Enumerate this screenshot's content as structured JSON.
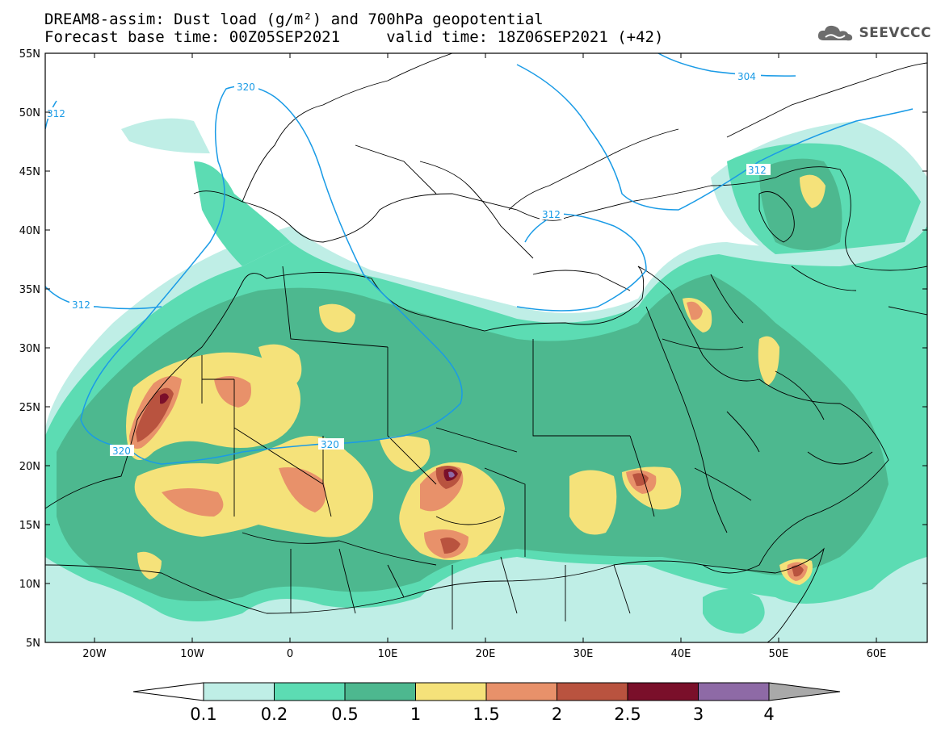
{
  "title": {
    "line1": "DREAM8-assim: Dust load (g/m²) and 700hPa geopotential",
    "line2": "Forecast base time: 00Z05SEP2021     valid time: 18Z06SEP2021 (+42)"
  },
  "logo": {
    "icon": "cloud-icon",
    "text": "SEEVCCC"
  },
  "axes": {
    "lat_labels": [
      "55N",
      "50N",
      "45N",
      "40N",
      "35N",
      "30N",
      "25N",
      "20N",
      "15N",
      "10N",
      "5N"
    ],
    "lon_labels": [
      "20W",
      "10W",
      "0",
      "10E",
      "20E",
      "30E",
      "40E",
      "50E",
      "60E"
    ]
  },
  "contour_labels": [
    "320",
    "312",
    "304",
    "312",
    "312",
    "312",
    "320",
    "320"
  ],
  "colorbar": {
    "ticks": [
      "0.1",
      "0.2",
      "0.5",
      "1",
      "1.5",
      "2",
      "2.5",
      "3",
      "4"
    ],
    "colors": [
      "#bfeee6",
      "#5cdcb3",
      "#4db88f",
      "#f5e27a",
      "#e8916a",
      "#b9533f",
      "#7a0f2a",
      "#8e6aa6",
      "#a9a9a9"
    ]
  }
}
